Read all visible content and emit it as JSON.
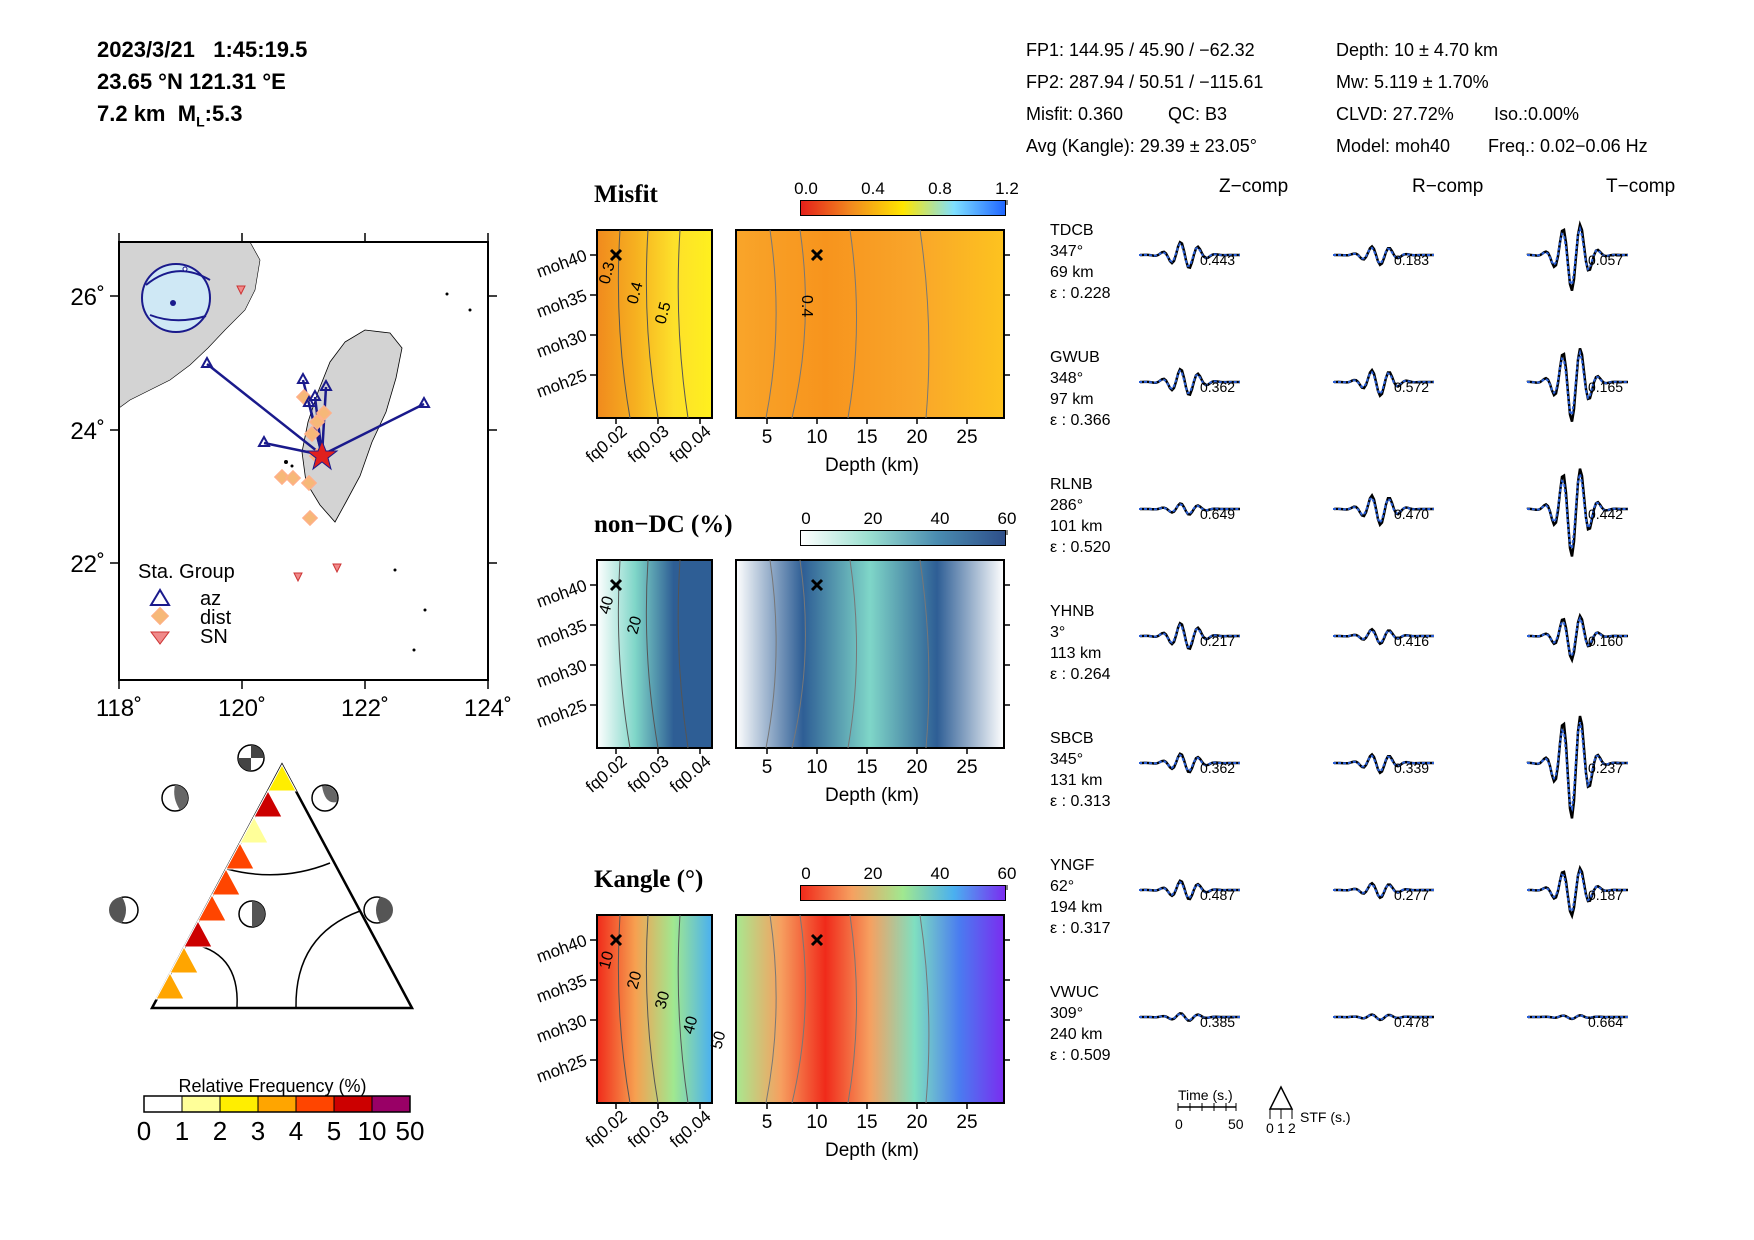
{
  "event": {
    "datetime": "2023/3/21   1:45:19.5",
    "location": "23.65 °N  121.31 °E",
    "depth": "7.2 km",
    "magnitude_prefix": "M",
    "magnitude_sub": "L",
    "magnitude_value": ":5.3"
  },
  "solution": {
    "fp1": "FP1: 144.95 / 45.90 / −62.32",
    "fp2": "FP2: 287.94 / 50.51 / −115.61",
    "misfit": "Misfit: 0.360",
    "qc": "QC: B3",
    "avg_kangle": "Avg (Kangle): 29.39 ± 23.05°",
    "depth": "Depth: 10 ± 4.70 km",
    "mw": "Mw: 5.119 ± 1.70%",
    "clvd": "CLVD: 27.72%",
    "iso": "Iso.:0.00%",
    "model": "Model: moh40",
    "freq": "Freq.: 0.02−0.06 Hz"
  },
  "map": {
    "lon_ticks": [
      "118˚",
      "120˚",
      "122˚",
      "124˚"
    ],
    "lat_ticks": [
      "26˚",
      "24˚",
      "22˚"
    ],
    "legend_title": "Sta. Group",
    "legend_items": [
      {
        "label": "az",
        "color": "#1a1a8c"
      },
      {
        "label": "dist",
        "color": "#f4a460"
      },
      {
        "label": "SN",
        "color": "#e06666"
      }
    ]
  },
  "triangle": {
    "colorbar_title": "Relative Frequency (%)",
    "colorbar_ticks": [
      "0",
      "1",
      "2",
      "3",
      "4",
      "5",
      "10",
      "50"
    ],
    "colorbar_colors": [
      "#ffffff",
      "#ffff99",
      "#ffee00",
      "#ffa500",
      "#ff4500",
      "#cc0000",
      "#990066"
    ]
  },
  "panels": [
    {
      "title": "Misfit",
      "cbar_ticks": [
        "0.0",
        "0.4",
        "0.8",
        "1.2"
      ],
      "contours_left": [
        "0.3",
        "0.4",
        "0.5"
      ],
      "contours_right": [
        "0.4"
      ],
      "model_ticks": [
        "moh40",
        "moh35",
        "moh30",
        "moh25"
      ],
      "freq_ticks": [
        "fq0.02",
        "fq0.03",
        "fq0.04"
      ],
      "depth_ticks": [
        "5",
        "10",
        "15",
        "20",
        "25"
      ],
      "xlabel": "Depth (km)"
    },
    {
      "title": "non−DC (%)",
      "cbar_ticks": [
        "0",
        "20",
        "40",
        "60"
      ],
      "contours_left": [
        "40",
        "20"
      ],
      "contours_right": [],
      "model_ticks": [
        "moh40",
        "moh35",
        "moh30",
        "moh25"
      ],
      "freq_ticks": [
        "fq0.02",
        "fq0.03",
        "fq0.04"
      ],
      "depth_ticks": [
        "5",
        "10",
        "15",
        "20",
        "25"
      ],
      "xlabel": "Depth (km)"
    },
    {
      "title": "Kangle (°)",
      "cbar_ticks": [
        "0",
        "20",
        "40",
        "60"
      ],
      "contours_left": [
        "10",
        "20",
        "30",
        "40",
        "50"
      ],
      "contours_right": [],
      "model_ticks": [
        "moh40",
        "moh35",
        "moh30",
        "moh25"
      ],
      "freq_ticks": [
        "fq0.02",
        "fq0.03",
        "fq0.04"
      ],
      "depth_ticks": [
        "5",
        "10",
        "15",
        "20",
        "25"
      ],
      "xlabel": "Depth (km)"
    }
  ],
  "components": [
    "Z−comp",
    "R−comp",
    "T−comp"
  ],
  "stations": [
    {
      "name": "TDCB",
      "az": "347°",
      "dist": "69 km",
      "eps": "ε : 0.228",
      "cc": [
        "0.443",
        "0.183",
        "0.057"
      ]
    },
    {
      "name": "GWUB",
      "az": "348°",
      "dist": "97 km",
      "eps": "ε : 0.366",
      "cc": [
        "0.362",
        "0.572",
        "0.165"
      ]
    },
    {
      "name": "RLNB",
      "az": "286°",
      "dist": "101 km",
      "eps": "ε : 0.520",
      "cc": [
        "0.649",
        "0.470",
        "0.442"
      ]
    },
    {
      "name": "YHNB",
      "az": "3°",
      "dist": "113 km",
      "eps": "ε : 0.264",
      "cc": [
        "0.217",
        "0.416",
        "0.160"
      ]
    },
    {
      "name": "SBCB",
      "az": "345°",
      "dist": "131 km",
      "eps": "ε : 0.313",
      "cc": [
        "0.362",
        "0.339",
        "0.237"
      ]
    },
    {
      "name": "YNGF",
      "az": "62°",
      "dist": "194 km",
      "eps": "ε : 0.317",
      "cc": [
        "0.487",
        "0.277",
        "0.187"
      ]
    },
    {
      "name": "VWUC",
      "az": "309°",
      "dist": "240 km",
      "eps": "ε : 0.509",
      "cc": [
        "0.385",
        "0.478",
        "0.664"
      ]
    }
  ],
  "scale": {
    "time_label": "Time (s.)",
    "time_ticks": [
      "0",
      "50"
    ],
    "stf_label": "STF (s.)",
    "stf_ticks": [
      "0",
      "1",
      "2"
    ]
  }
}
